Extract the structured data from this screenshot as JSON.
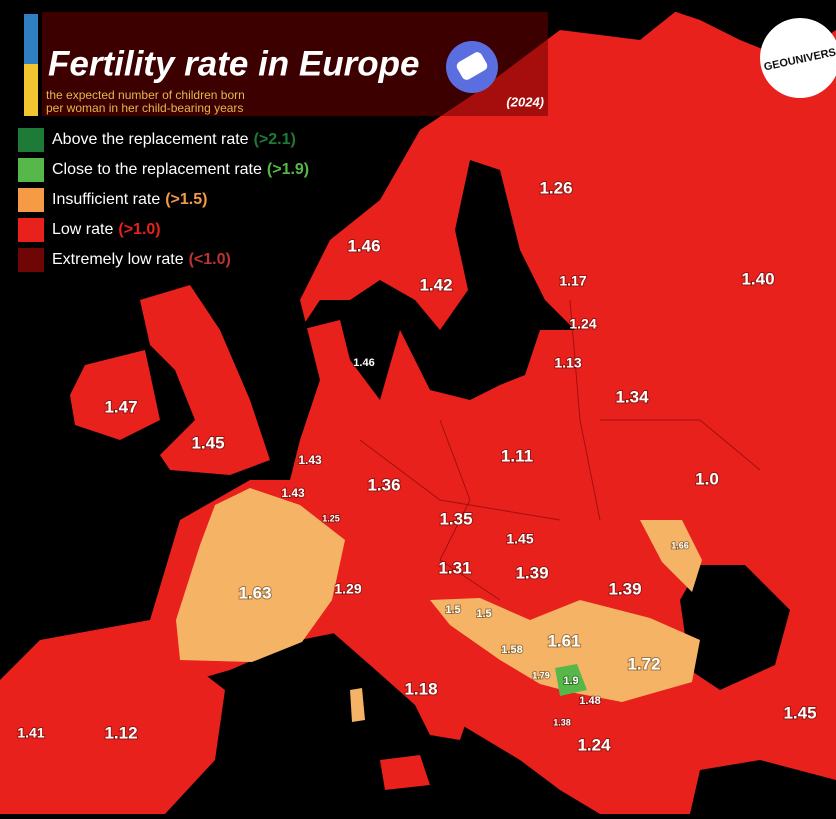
{
  "header": {
    "title": "Fertility rate in Europe",
    "subtitle": [
      "the expected number of children born",
      "per woman in her child-bearing years"
    ],
    "year": "(2024)"
  },
  "logo": "GEOUNIVERS",
  "legend": [
    {
      "text": "Above the replacement rate",
      "threshold": "(>2.1)",
      "color": "#1e7b37"
    },
    {
      "text": "Close to the replacement rate",
      "threshold": "(>1.9)",
      "color": "#55b848"
    },
    {
      "text": "Insufficient rate",
      "threshold": "(>1.5)",
      "color": "#f59a45"
    },
    {
      "text": "Low rate",
      "threshold": "(>1.0)",
      "color": "#e8211c"
    },
    {
      "text": "Extremely low rate",
      "threshold": "(<1.0)",
      "color": "#6e0606"
    }
  ],
  "map_labels": [
    "1.26",
    "1.46",
    "1.42",
    "1.17",
    "1.40",
    "1.24",
    "1.46",
    "1.13",
    "1.47",
    "1.34",
    "1.45",
    "1.43",
    "1.11",
    "1.0",
    "1.43",
    "1.36",
    "1.25",
    "1.35",
    "1.45",
    "1.66",
    "1.31",
    "1.39",
    "1.63",
    "1.29",
    "1.39",
    "1.5",
    "1.5",
    "1.61",
    "1.58",
    "1.72",
    "1.79",
    "1.9",
    "1.48",
    "1.18",
    "1.45",
    "1.38",
    "1.41",
    "1.12",
    "1.24"
  ]
}
